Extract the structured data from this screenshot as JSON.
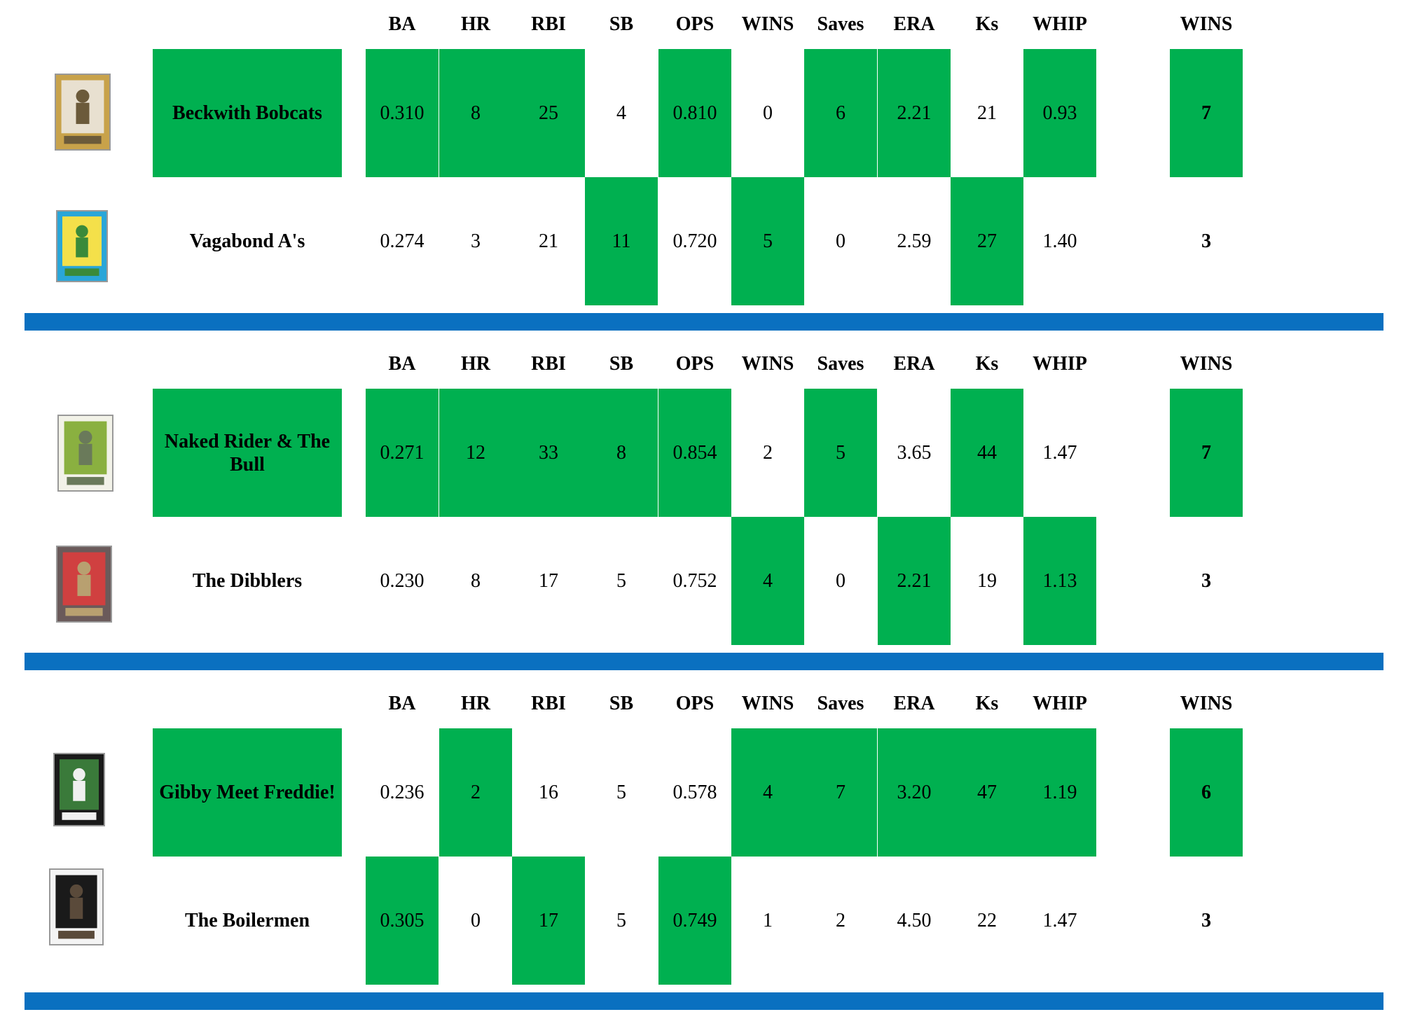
{
  "colors": {
    "win_highlight": "#00b050",
    "separator": "#0a70c0"
  },
  "headers": [
    "BA",
    "HR",
    "RBI",
    "SB",
    "OPS",
    "WINS",
    "Saves",
    "ERA",
    "Ks",
    "WHIP"
  ],
  "total_header": "WINS",
  "matchups": [
    {
      "teams": [
        {
          "name": "Beckwith Bobcats",
          "card_icon": "baseball-card-pitcher",
          "card_colors": [
            "#c8a24a",
            "#6b5a3a",
            "#e8e0d0"
          ],
          "stats": [
            "0.310",
            "8",
            "25",
            "4",
            "0.810",
            "0",
            "6",
            "2.21",
            "21",
            "0.93"
          ],
          "wins_cat": [
            true,
            true,
            true,
            false,
            true,
            false,
            true,
            true,
            false,
            true
          ],
          "total": "7",
          "total_win": true
        },
        {
          "name": "Vagabond A's",
          "card_icon": "baseball-card-athletics",
          "card_colors": [
            "#2aa6d8",
            "#3a8a3a",
            "#f4e04a"
          ],
          "stats": [
            "0.274",
            "3",
            "21",
            "11",
            "0.720",
            "5",
            "0",
            "2.59",
            "27",
            "1.40"
          ],
          "wins_cat": [
            false,
            false,
            false,
            true,
            false,
            true,
            false,
            false,
            true,
            false
          ],
          "total": "3",
          "total_win": false
        }
      ]
    },
    {
      "teams": [
        {
          "name": "Naked Rider & The Bull",
          "card_icon": "baseball-card-batter",
          "card_colors": [
            "#f2f2e8",
            "#6a7a5a",
            "#8ab040"
          ],
          "stats": [
            "0.271",
            "12",
            "33",
            "8",
            "0.854",
            "2",
            "5",
            "3.65",
            "44",
            "1.47"
          ],
          "wins_cat": [
            true,
            true,
            true,
            true,
            true,
            false,
            true,
            false,
            true,
            false
          ],
          "total": "7",
          "total_win": true
        },
        {
          "name": "The Dibblers",
          "card_icon": "baseball-card-portrait",
          "card_colors": [
            "#6a5a5a",
            "#b8a070",
            "#d04040"
          ],
          "stats": [
            "0.230",
            "8",
            "17",
            "5",
            "0.752",
            "4",
            "0",
            "2.21",
            "19",
            "1.13"
          ],
          "wins_cat": [
            false,
            false,
            false,
            false,
            false,
            true,
            false,
            true,
            false,
            true
          ],
          "total": "3",
          "total_win": false
        }
      ]
    },
    {
      "teams": [
        {
          "name": "Gibby Meet Freddie!",
          "card_icon": "baseball-card-outfielder",
          "card_colors": [
            "#1a1a1a",
            "#f0f0f0",
            "#3a7a3a"
          ],
          "stats": [
            "0.236",
            "2",
            "16",
            "5",
            "0.578",
            "4",
            "7",
            "3.20",
            "47",
            "1.19"
          ],
          "wins_cat": [
            false,
            true,
            false,
            false,
            false,
            true,
            true,
            true,
            true,
            true
          ],
          "total": "6",
          "total_win": true
        },
        {
          "name": "The Boilermen",
          "card_icon": "baseball-card-padres",
          "card_colors": [
            "#f4f4f4",
            "#5a4a3a",
            "#1a1a1a"
          ],
          "stats": [
            "0.305",
            "0",
            "17",
            "5",
            "0.749",
            "1",
            "2",
            "4.50",
            "22",
            "1.47"
          ],
          "wins_cat": [
            true,
            false,
            true,
            false,
            true,
            false,
            false,
            false,
            false,
            false
          ],
          "total": "3",
          "total_win": false
        }
      ]
    }
  ]
}
